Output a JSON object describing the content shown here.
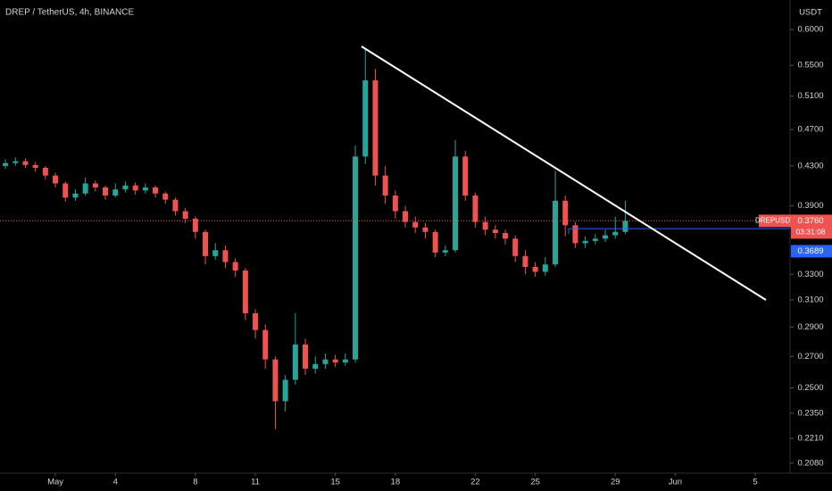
{
  "chart_data": {
    "type": "candlestick",
    "title": "DREP / TetherUS, 4h, BINANCE",
    "currency": "USDT",
    "symbol": "DREPUSDT",
    "countdown": "03:31:08",
    "last_price": {
      "value": 0.376,
      "label": "0.3760"
    },
    "alert_price": {
      "value": 0.3689,
      "label": "0.3689"
    },
    "log_scale": true,
    "up_color": "#26a69a",
    "down_color": "#ef5350",
    "ylim": [
      0.203,
      0.645
    ],
    "yticks": [
      {
        "value": 0.6,
        "label": "0.6000"
      },
      {
        "value": 0.55,
        "label": "0.5500"
      },
      {
        "value": 0.51,
        "label": "0.5100"
      },
      {
        "value": 0.47,
        "label": "0.4700"
      },
      {
        "value": 0.43,
        "label": "0.4300"
      },
      {
        "value": 0.39,
        "label": "0.3900"
      },
      {
        "value": 0.33,
        "label": "0.3300"
      },
      {
        "value": 0.31,
        "label": "0.3100"
      },
      {
        "value": 0.29,
        "label": "0.2900"
      },
      {
        "value": 0.27,
        "label": "0.2700"
      },
      {
        "value": 0.25,
        "label": "0.2500"
      },
      {
        "value": 0.235,
        "label": "0.2350"
      },
      {
        "value": 0.221,
        "label": "0.2210"
      },
      {
        "value": 0.208,
        "label": "0.2080"
      }
    ],
    "xlim": [
      -1.77,
      37.74
    ],
    "xticks": [
      {
        "value": 1,
        "label": "May"
      },
      4,
      8,
      11,
      15,
      18,
      22,
      25,
      29,
      {
        "value": 32,
        "label": "Jun"
      },
      {
        "value": 36,
        "label": "5"
      }
    ],
    "candles": {
      "x": [
        -1.5,
        -1,
        -0.5,
        0,
        0.5,
        1,
        1.5,
        2,
        2.5,
        3,
        3.5,
        4,
        4.5,
        5,
        5.5,
        6,
        6.5,
        7,
        7.5,
        8,
        8.5,
        9,
        9.5,
        10,
        10.5,
        11,
        11.5,
        12,
        12.5,
        13,
        13.5,
        14,
        14.5,
        15,
        15.5,
        16,
        16.5,
        17,
        17.5,
        18,
        18.5,
        19,
        19.5,
        20,
        20.5,
        21,
        21.5,
        22,
        22.5,
        23,
        23.5,
        24,
        24.5,
        25,
        25.5,
        26,
        26.5,
        27,
        27.5,
        28,
        28.5,
        29,
        29.5
      ],
      "open": [
        0.43,
        0.433,
        0.435,
        0.431,
        0.428,
        0.42,
        0.412,
        0.398,
        0.402,
        0.412,
        0.408,
        0.4,
        0.406,
        0.41,
        0.405,
        0.408,
        0.402,
        0.396,
        0.385,
        0.378,
        0.366,
        0.345,
        0.35,
        0.34,
        0.333,
        0.3,
        0.288,
        0.268,
        0.242,
        0.255,
        0.278,
        0.262,
        0.265,
        0.268,
        0.266,
        0.268,
        0.44,
        0.53,
        0.42,
        0.4,
        0.385,
        0.375,
        0.37,
        0.366,
        0.348,
        0.35,
        0.44,
        0.4,
        0.375,
        0.368,
        0.365,
        0.36,
        0.345,
        0.336,
        0.332,
        0.338,
        0.395,
        0.372,
        0.356,
        0.358,
        0.36,
        0.363,
        0.366
      ],
      "high": [
        0.437,
        0.439,
        0.438,
        0.434,
        0.43,
        0.423,
        0.414,
        0.406,
        0.418,
        0.415,
        0.41,
        0.412,
        0.414,
        0.413,
        0.412,
        0.41,
        0.404,
        0.398,
        0.388,
        0.38,
        0.368,
        0.356,
        0.354,
        0.343,
        0.335,
        0.303,
        0.292,
        0.27,
        0.258,
        0.3,
        0.282,
        0.27,
        0.272,
        0.271,
        0.272,
        0.452,
        0.572,
        0.545,
        0.43,
        0.405,
        0.39,
        0.38,
        0.374,
        0.368,
        0.354,
        0.458,
        0.446,
        0.403,
        0.38,
        0.372,
        0.368,
        0.363,
        0.35,
        0.34,
        0.344,
        0.425,
        0.4,
        0.375,
        0.362,
        0.364,
        0.368,
        0.38,
        0.395
      ],
      "low": [
        0.427,
        0.43,
        0.428,
        0.424,
        0.416,
        0.408,
        0.394,
        0.395,
        0.4,
        0.404,
        0.396,
        0.398,
        0.403,
        0.401,
        0.402,
        0.398,
        0.392,
        0.381,
        0.374,
        0.36,
        0.338,
        0.342,
        0.335,
        0.328,
        0.295,
        0.282,
        0.262,
        0.226,
        0.236,
        0.252,
        0.258,
        0.259,
        0.262,
        0.263,
        0.264,
        0.266,
        0.432,
        0.41,
        0.392,
        0.378,
        0.37,
        0.365,
        0.36,
        0.344,
        0.345,
        0.348,
        0.395,
        0.37,
        0.363,
        0.36,
        0.355,
        0.34,
        0.33,
        0.328,
        0.329,
        0.336,
        0.362,
        0.352,
        0.352,
        0.355,
        0.357,
        0.36,
        0.364
      ],
      "close": [
        0.433,
        0.435,
        0.431,
        0.428,
        0.42,
        0.412,
        0.398,
        0.402,
        0.412,
        0.408,
        0.4,
        0.406,
        0.41,
        0.405,
        0.408,
        0.402,
        0.396,
        0.385,
        0.378,
        0.366,
        0.345,
        0.35,
        0.34,
        0.333,
        0.3,
        0.288,
        0.268,
        0.242,
        0.255,
        0.278,
        0.262,
        0.265,
        0.268,
        0.266,
        0.268,
        0.44,
        0.53,
        0.42,
        0.4,
        0.385,
        0.375,
        0.37,
        0.366,
        0.348,
        0.35,
        0.44,
        0.4,
        0.375,
        0.368,
        0.365,
        0.36,
        0.345,
        0.336,
        0.332,
        0.338,
        0.395,
        0.372,
        0.356,
        0.358,
        0.36,
        0.363,
        0.366,
        0.376
      ]
    }
  }
}
